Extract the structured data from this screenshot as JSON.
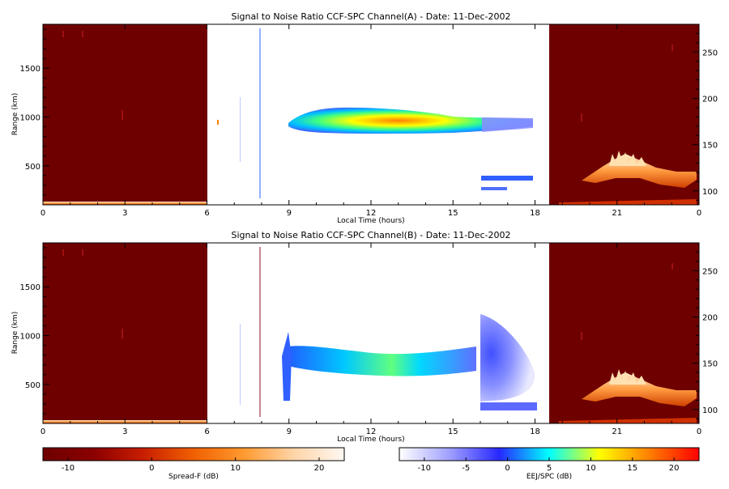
{
  "chart_data": [
    {
      "type": "heatmap",
      "title": "Signal to Noise Ratio CCF-SPC Channel(A) - Date: 11-Dec-2002",
      "xlabel": "Local Time (hours)",
      "ylabel": "Range (km)",
      "xlim": [
        0,
        24
      ],
      "ylim": [
        100,
        1950
      ],
      "y2lim": [
        85,
        280
      ],
      "x_ticks": [
        "0",
        "3",
        "6",
        "9",
        "12",
        "15",
        "18",
        "21",
        "0"
      ],
      "y_ticks": [
        "500",
        "1000",
        "1500"
      ],
      "y2_ticks": [
        "100",
        "150",
        "200",
        "250"
      ],
      "spread_f_segments": [
        {
          "name": "Spread-F",
          "x_start": 0,
          "x_end": 6,
          "y_start": 100,
          "y_end": 1950,
          "level": "low"
        },
        {
          "name": "Spread-F",
          "x_start": 18.4,
          "x_end": 24,
          "y_start": 85,
          "y_end": 280,
          "level": "low"
        }
      ],
      "echo_regions": [
        {
          "x_start": 9.0,
          "x_end": 18.0,
          "y_center": 1000,
          "y_half": 90,
          "peak_x": 12.0,
          "peak_db": 14
        },
        {
          "x_start": 16.0,
          "x_end": 18.0,
          "y_center": 380,
          "y_half": 25,
          "peak_x": 17.0,
          "peak_db": -4
        },
        {
          "x_start": 16.0,
          "x_end": 17.0,
          "y_center": 290,
          "y_half": 15,
          "peak_x": 16.5,
          "peak_db": -4
        }
      ],
      "grid": false
    },
    {
      "type": "heatmap",
      "title": "Signal to Noise Ratio CCF-SPC Channel(B) - Date: 11-Dec-2002",
      "xlabel": "Local Time (hours)",
      "ylabel": "Range (km)",
      "xlim": [
        0,
        24
      ],
      "ylim": [
        100,
        1950
      ],
      "y2lim": [
        85,
        280
      ],
      "x_ticks": [
        "0",
        "3",
        "6",
        "9",
        "12",
        "15",
        "18",
        "21",
        "0"
      ],
      "y_ticks": [
        "500",
        "1000",
        "1500"
      ],
      "y2_ticks": [
        "100",
        "150",
        "200",
        "250"
      ],
      "spread_f_segments": [
        {
          "name": "Spread-F",
          "x_start": 0,
          "x_end": 6,
          "y_start": 100,
          "y_end": 1950,
          "level": "low"
        },
        {
          "name": "Spread-F",
          "x_start": 18.4,
          "x_end": 24,
          "y_start": 85,
          "y_end": 280,
          "level": "low"
        }
      ],
      "echo_regions": [
        {
          "x_start": 9.0,
          "x_end": 15.8,
          "y_center": 760,
          "y_half": 110,
          "peak_x": 12.8,
          "peak_db": 8
        },
        {
          "x_start": 16.0,
          "x_end": 18.0,
          "y_center": 700,
          "y_half": 420,
          "peak_x": 16.3,
          "peak_db": -6
        },
        {
          "x_start": 16.0,
          "x_end": 18.0,
          "y_center": 320,
          "y_half": 40,
          "peak_x": 16.5,
          "peak_db": -4
        }
      ],
      "grid": false
    }
  ],
  "colorbars": {
    "left": {
      "label": "Spread-F (dB)",
      "min": -13,
      "max": 23,
      "ticks": [
        "-10",
        "0",
        "10",
        "20"
      ],
      "colors": [
        "#6e0000",
        "#8b0000",
        "#c81e00",
        "#f06000",
        "#ff9a30",
        "#ffd4a8",
        "#fff8f2"
      ]
    },
    "right": {
      "label": "EEJ/SPC (dB)",
      "min": -13,
      "max": 23,
      "ticks": [
        "-10",
        "-5",
        "0",
        "5",
        "10",
        "15",
        "20"
      ],
      "colors": [
        "#ffffff",
        "#a0a0ff",
        "#2828ff",
        "#00ffff",
        "#ffff00",
        "#ff8000",
        "#ff0000"
      ]
    }
  }
}
